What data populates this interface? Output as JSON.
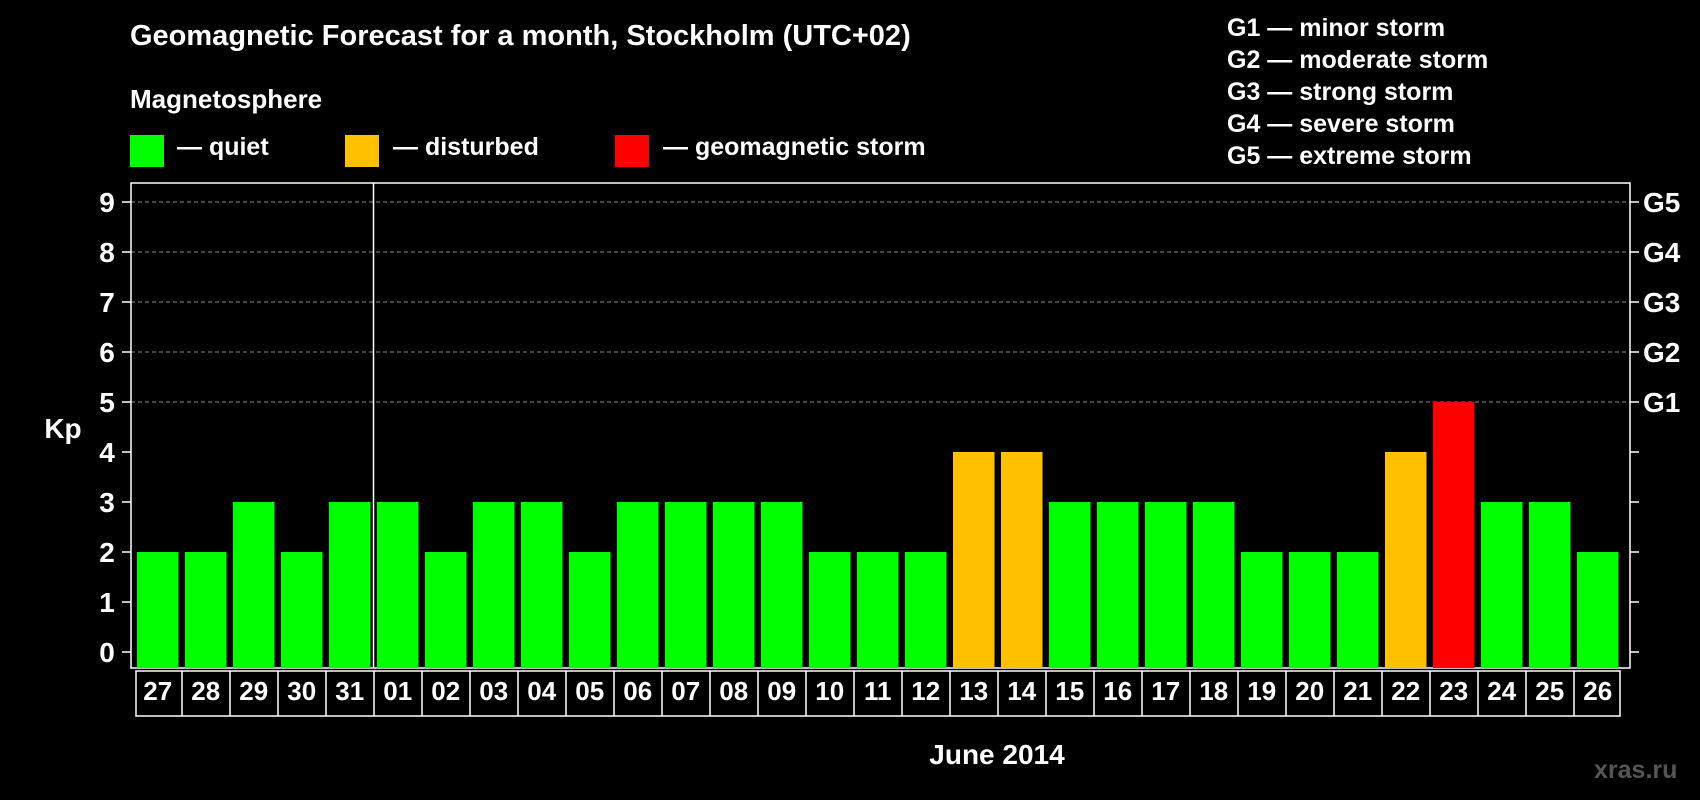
{
  "title": "Geomagnetic Forecast for a month, Stockholm (UTC+02)",
  "subtitle": "Magnetosphere",
  "legend": [
    {
      "label": "— quiet",
      "color": "#00ff00"
    },
    {
      "label": "— disturbed",
      "color": "#ffc000"
    },
    {
      "label": "— geomagnetic storm",
      "color": "#ff0000"
    }
  ],
  "storm_scale": [
    "G1 — minor storm",
    "G2 — moderate storm",
    "G3 — strong storm",
    "G4 — severe storm",
    "G5 — extreme storm"
  ],
  "watermark": "xras.ru",
  "chart_data": {
    "type": "bar",
    "ylabel": "Kp",
    "xlabel": "June 2014",
    "ylim": [
      0,
      9
    ],
    "y_ticks": [
      0,
      1,
      2,
      3,
      4,
      5,
      6,
      7,
      8,
      9
    ],
    "right_tick_labels": [
      {
        "value": 5,
        "label": "G1"
      },
      {
        "value": 6,
        "label": "G2"
      },
      {
        "value": 7,
        "label": "G3"
      },
      {
        "value": 8,
        "label": "G4"
      },
      {
        "value": 9,
        "label": "G5"
      }
    ],
    "grid": "dashed horizontal at Kp 5-9",
    "month_divider_after": "31",
    "categories": [
      "27",
      "28",
      "29",
      "30",
      "31",
      "01",
      "02",
      "03",
      "04",
      "05",
      "06",
      "07",
      "08",
      "09",
      "10",
      "11",
      "12",
      "13",
      "14",
      "15",
      "16",
      "17",
      "18",
      "19",
      "20",
      "21",
      "22",
      "23",
      "24",
      "25",
      "26"
    ],
    "values": [
      2,
      2,
      3,
      2,
      3,
      3,
      2,
      3,
      3,
      2,
      3,
      3,
      3,
      3,
      2,
      2,
      2,
      4,
      4,
      3,
      3,
      3,
      3,
      2,
      2,
      2,
      4,
      5,
      3,
      3,
      2
    ],
    "colors": {
      "quiet": "#00ff00",
      "disturbed": "#ffc000",
      "storm": "#ff0000"
    }
  }
}
